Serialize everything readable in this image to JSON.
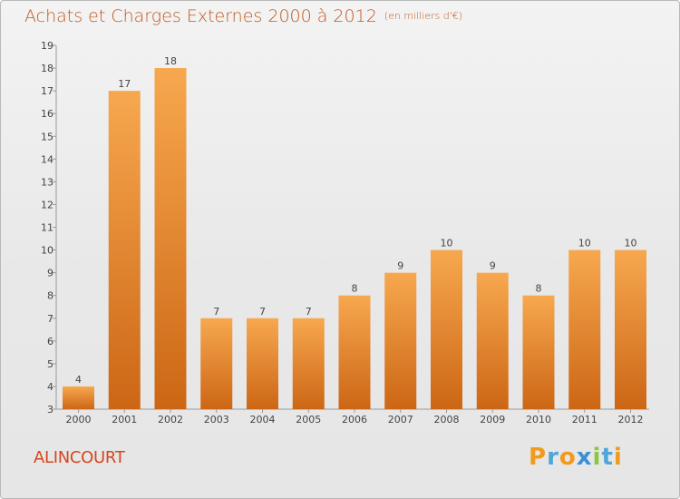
{
  "header": {
    "title": "Achats et Charges Externes 2000 à 2012",
    "unit": "(en milliers d'€)"
  },
  "footer": {
    "commune": "ALINCOURT",
    "logo_text": "Proxiti"
  },
  "colors": {
    "bar_light": "#f7a84f",
    "bar_dark": "#cc6615",
    "title": "#c05a1f",
    "commune": "#d7451f",
    "logo_letters": [
      "#f29a1c",
      "#4fa7d9",
      "#f29a1c",
      "#3b8fd6",
      "#8cc63f",
      "#4fa7d9",
      "#f29a1c"
    ]
  },
  "chart_data": {
    "type": "bar",
    "title": "Achats et Charges Externes 2000 à 2012",
    "subtitle": "(en milliers d'€)",
    "xlabel": "",
    "ylabel": "",
    "categories": [
      "2000",
      "2001",
      "2002",
      "2003",
      "2004",
      "2005",
      "2006",
      "2007",
      "2008",
      "2009",
      "2010",
      "2011",
      "2012"
    ],
    "values": [
      4,
      17,
      18,
      7,
      7,
      7,
      8,
      9,
      10,
      9,
      8,
      10,
      10
    ],
    "ylim": [
      3,
      19
    ],
    "yticks": [
      3,
      4,
      5,
      6,
      7,
      8,
      9,
      10,
      11,
      12,
      13,
      14,
      15,
      16,
      17,
      18,
      19
    ],
    "grid": false
  }
}
